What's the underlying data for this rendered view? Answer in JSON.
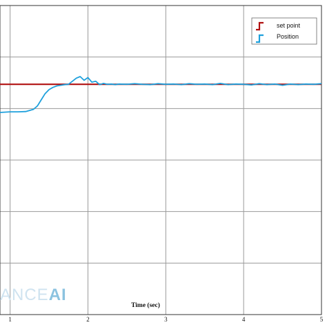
{
  "chart_data": {
    "type": "line",
    "title": "",
    "xlabel": "Time (sec)",
    "ylabel": "",
    "xlim": [
      0.87,
      5.0
    ],
    "ylim": [
      0.0,
      1.0
    ],
    "x_ticks": [
      1,
      2,
      3,
      4,
      5
    ],
    "grid": true,
    "legend_position": "top-right",
    "series": [
      {
        "name": "set point",
        "color": "#b01010",
        "x": [
          0.87,
          5.0
        ],
        "y": [
          0.745,
          0.745
        ]
      },
      {
        "name": "Position",
        "color": "#1ea0dc",
        "x": [
          0.87,
          1.0,
          1.1,
          1.2,
          1.3,
          1.35,
          1.4,
          1.45,
          1.5,
          1.55,
          1.6,
          1.65,
          1.7,
          1.75,
          1.8,
          1.85,
          1.9,
          1.95,
          2.0,
          2.05,
          2.1,
          2.15,
          2.2,
          2.25,
          2.3,
          2.35,
          2.4,
          2.5,
          2.6,
          2.7,
          2.8,
          2.9,
          3.0,
          3.1,
          3.2,
          3.3,
          3.4,
          3.5,
          3.6,
          3.7,
          3.8,
          3.9,
          4.0,
          4.1,
          4.2,
          4.3,
          4.4,
          4.5,
          4.6,
          4.7,
          4.8,
          4.9,
          5.0
        ],
        "y": [
          0.654,
          0.656,
          0.656,
          0.657,
          0.664,
          0.675,
          0.695,
          0.715,
          0.728,
          0.735,
          0.74,
          0.742,
          0.744,
          0.745,
          0.755,
          0.765,
          0.77,
          0.758,
          0.767,
          0.752,
          0.755,
          0.744,
          0.748,
          0.745,
          0.746,
          0.744,
          0.746,
          0.745,
          0.747,
          0.745,
          0.744,
          0.747,
          0.745,
          0.746,
          0.744,
          0.747,
          0.745,
          0.746,
          0.744,
          0.748,
          0.744,
          0.746,
          0.745,
          0.743,
          0.747,
          0.744,
          0.746,
          0.742,
          0.746,
          0.744,
          0.746,
          0.745,
          0.747
        ]
      }
    ]
  },
  "watermark": {
    "part1": "ANCE",
    "part2": "AI"
  }
}
